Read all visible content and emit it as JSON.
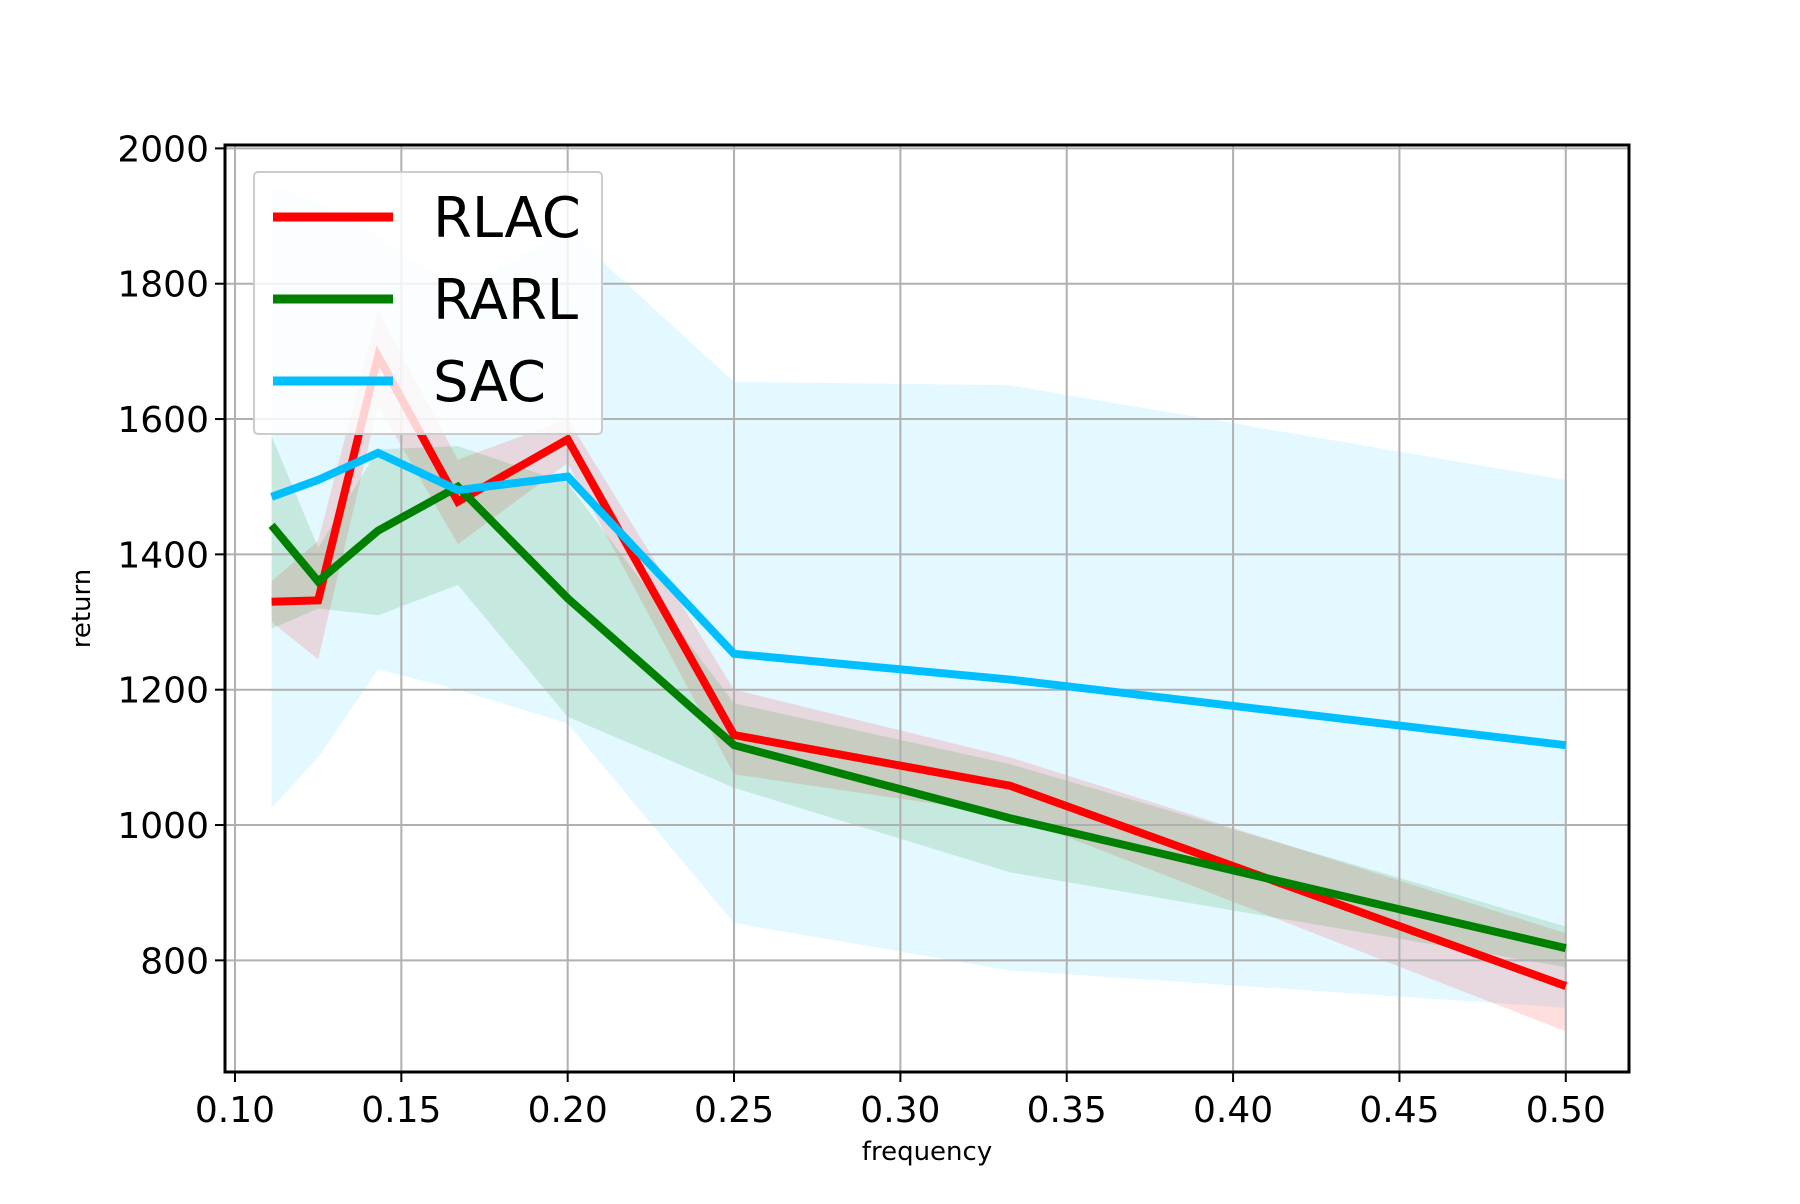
{
  "chart_data": {
    "type": "line",
    "title": "",
    "xlabel": "frequency",
    "ylabel": "return",
    "xlim": [
      0.097,
      0.519
    ],
    "ylim": [
      635,
      2005
    ],
    "xticks": [
      0.1,
      0.15,
      0.2,
      0.25,
      0.3,
      0.35,
      0.4,
      0.45,
      0.5
    ],
    "xtick_labels": [
      "0.10",
      "0.15",
      "0.20",
      "0.25",
      "0.30",
      "0.35",
      "0.40",
      "0.45",
      "0.50"
    ],
    "yticks": [
      800,
      1000,
      1200,
      1400,
      1600,
      1800,
      2000
    ],
    "ytick_labels": [
      "800",
      "1000",
      "1200",
      "1400",
      "1600",
      "1800",
      "2000"
    ],
    "grid": true,
    "legend_position": "upper-left",
    "x": [
      0.111,
      0.125,
      0.143,
      0.167,
      0.2,
      0.25,
      0.333,
      0.5
    ],
    "series": [
      {
        "name": "RLAC",
        "color": "#ff0000",
        "values": [
          1330,
          1332,
          1693,
          1478,
          1570,
          1133,
          1058,
          762
        ],
        "lower": [
          1300,
          1245,
          1620,
          1415,
          1535,
          1075,
          1015,
          695
        ],
        "upper": [
          1360,
          1420,
          1760,
          1540,
          1600,
          1200,
          1100,
          840
        ]
      },
      {
        "name": "RARL",
        "color": "#008000",
        "values": [
          1443,
          1360,
          1435,
          1500,
          1335,
          1118,
          1010,
          818
        ],
        "lower": [
          1290,
          1320,
          1310,
          1355,
          1160,
          1055,
          930,
          790
        ],
        "upper": [
          1575,
          1410,
          1555,
          1560,
          1505,
          1180,
          1090,
          850
        ]
      },
      {
        "name": "SAC",
        "color": "#00bfff",
        "values": [
          1485,
          1510,
          1550,
          1495,
          1515,
          1253,
          1215,
          1118
        ],
        "lower": [
          1025,
          1100,
          1230,
          1200,
          1150,
          855,
          785,
          730
        ],
        "upper": [
          1945,
          1920,
          1870,
          1790,
          1880,
          1655,
          1650,
          1510
        ]
      }
    ]
  }
}
